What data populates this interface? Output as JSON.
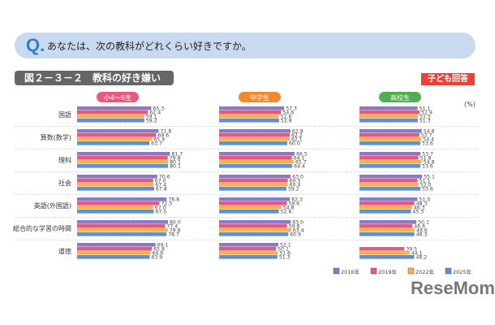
{
  "question": {
    "mark": "Q.",
    "text": "あなたは、次の教科がどれくらい好きですか。"
  },
  "figure_title": "図２－３－２　教科の好き嫌い",
  "badge": "子ども回答",
  "unit": "(%)",
  "watermark": "ReseMom",
  "chart_data": {
    "type": "bar",
    "orientation": "horizontal",
    "categories": [
      "国語",
      "算数(数学)",
      "理科",
      "社会",
      "英語(外国語)",
      "総合的な学習の時間",
      "道徳"
    ],
    "legend": [
      "2016年",
      "2019年",
      "2022年",
      "2025年"
    ],
    "legend_placement": "bottom-right",
    "colors": [
      "#8b79c2",
      "#e8587c",
      "#f6b24c",
      "#5e90d8"
    ],
    "panels": [
      {
        "name": "小4～6生",
        "color": "#e85a7c",
        "series": [
          {
            "name": "2016年",
            "values": [
              65.3,
              71.8,
              81.7,
              70.6,
              78.8,
              80.0,
              69.1
            ]
          },
          {
            "name": "2019年",
            "values": [
              62.4,
              69.6,
              79.8,
              67.0,
              72.5,
              77.4,
              65.8
            ]
          },
          {
            "name": "2022年",
            "values": [
              59.1,
              65.9,
              80.1,
              67.4,
              67.0,
              79.8,
              64.6
            ]
          },
          {
            "name": "2025年",
            "values": [
              59.2,
              63.7,
              80.1,
              67.8,
              67.5,
              78.7,
              63.9
            ]
          }
        ]
      },
      {
        "name": "中学生",
        "color": "#f28a2a",
        "series": [
          {
            "name": "2016年",
            "values": [
              57.3,
              62.8,
              66.5,
              63.0,
              62.3,
              63.0,
              52.1
            ]
          },
          {
            "name": "2019年",
            "values": [
              54.6,
              62.2,
              64.1,
              60.5,
              59.6,
              59.8,
              50.1
            ]
          },
          {
            "name": "2022年",
            "values": [
              52.6,
              62.1,
              65.7,
              60.4,
              54.8,
              63.4,
              51.6
            ]
          },
          {
            "name": "2025年",
            "values": [
              52.8,
              60.0,
              64.4,
              59.2,
              52.6,
              60.9,
              51.3
            ]
          }
        ]
      },
      {
        "name": "高校生",
        "color": "#4fae4e",
        "series": [
          {
            "name": "2016年",
            "values": [
              51.1,
              54.8,
              53.7,
              55.1,
              51.0,
              50.1,
              null
            ]
          },
          {
            "name": "2019年",
            "values": [
              52.9,
              52.7,
              51.8,
              51.1,
              48.3,
              46.6,
              39.5
            ]
          },
          {
            "name": "2022年",
            "values": [
              51.5,
              54.4,
              54.8,
              52.0,
              46.3,
              48.6,
              44.1
            ]
          },
          {
            "name": "2025年",
            "values": [
              51.3,
              53.6,
              53.6,
              53.6,
              45.3,
              48.3,
              48.2
            ]
          }
        ]
      }
    ],
    "grid": false
  }
}
